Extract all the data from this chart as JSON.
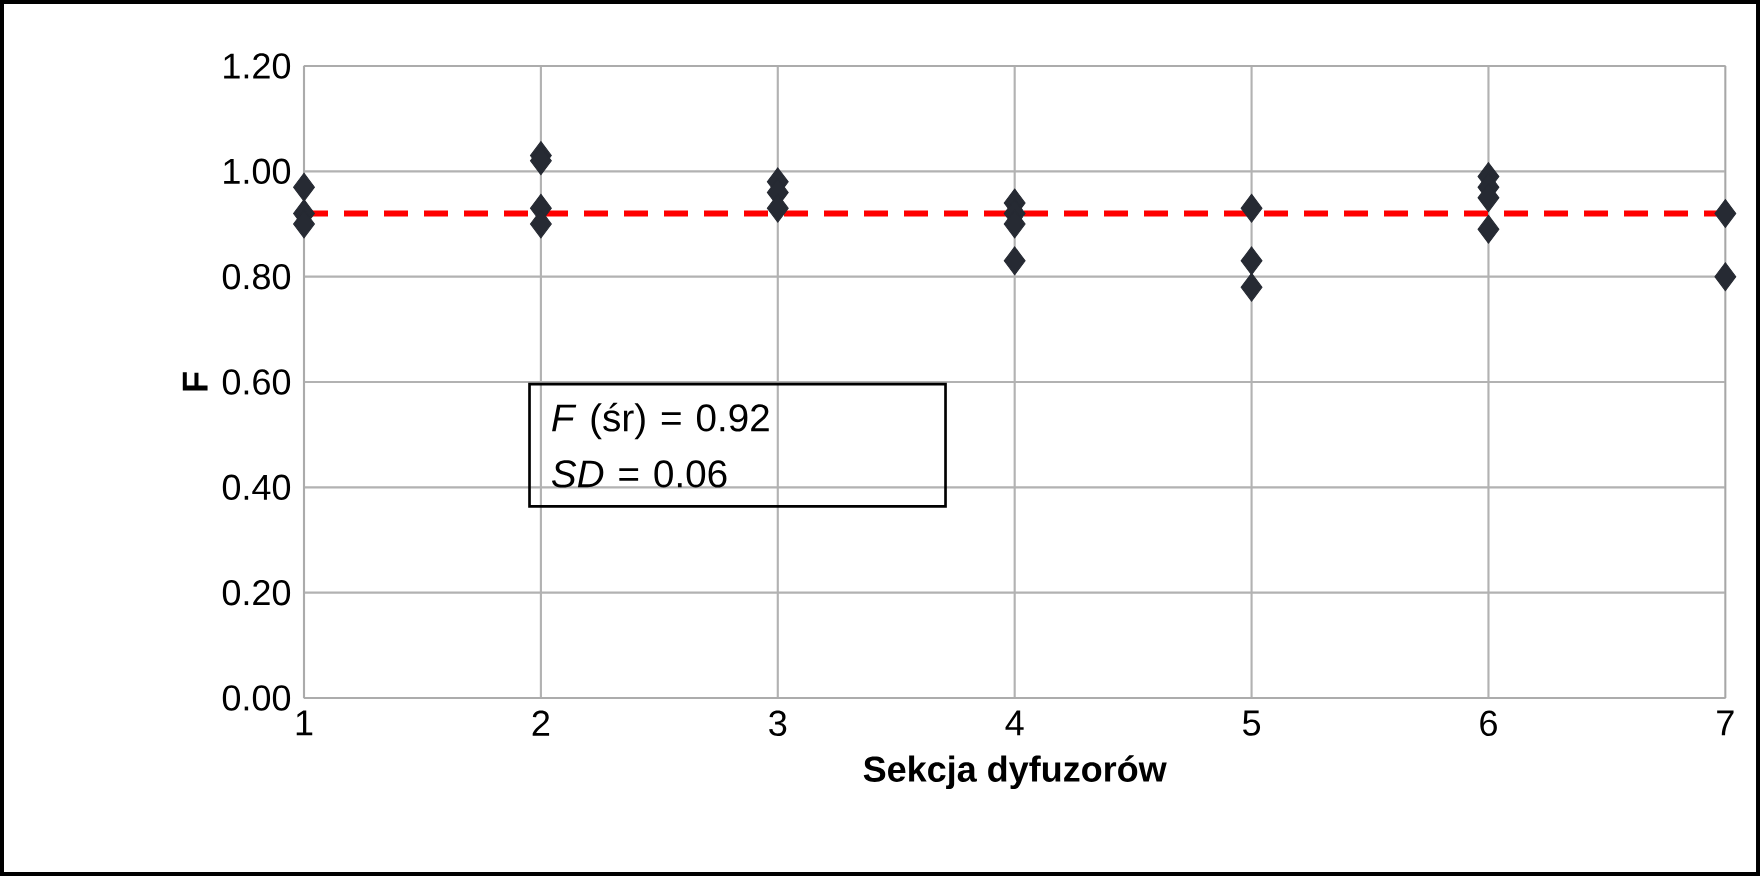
{
  "chart_data": {
    "type": "scatter",
    "xlabel": "Sekcja dyfuzorów",
    "ylabel": "F",
    "series": [
      {
        "color": "#262a33",
        "x": [
          1,
          1,
          1,
          2,
          2,
          2,
          2,
          3,
          3,
          3,
          4,
          4,
          4,
          4,
          5,
          5,
          5,
          6,
          6,
          6,
          6,
          7,
          7
        ],
        "values": [
          0.97,
          0.92,
          0.9,
          1.03,
          1.02,
          0.93,
          0.9,
          0.98,
          0.96,
          0.93,
          0.94,
          0.92,
          0.9,
          0.83,
          0.93,
          0.83,
          0.78,
          0.99,
          0.97,
          0.95,
          0.89,
          0.92,
          0.8
        ]
      }
    ],
    "marker": "diamond",
    "grid": true,
    "xlim": [
      1,
      7
    ],
    "xticks": [
      1,
      2,
      3,
      4,
      5,
      6,
      7
    ],
    "ylim": [
      0,
      1.2
    ],
    "yticks": [
      {
        "value": 0,
        "label": "0.00"
      },
      {
        "value": 0.2,
        "label": "0.20"
      },
      {
        "value": 0.4,
        "label": "0.40"
      },
      {
        "value": 0.6,
        "label": "0.60"
      },
      {
        "value": 0.8,
        "label": "0.80"
      },
      {
        "value": 1,
        "label": "1.00"
      },
      {
        "value": 1.2,
        "label": "1.20"
      }
    ],
    "ref_lines": [
      {
        "axis": "y",
        "value": 0.92,
        "color": "#ff0000",
        "line_style": "dashed"
      }
    ],
    "annotations": [
      "*F* (śr) = 0.92",
      "*SD* = 0.06"
    ]
  }
}
